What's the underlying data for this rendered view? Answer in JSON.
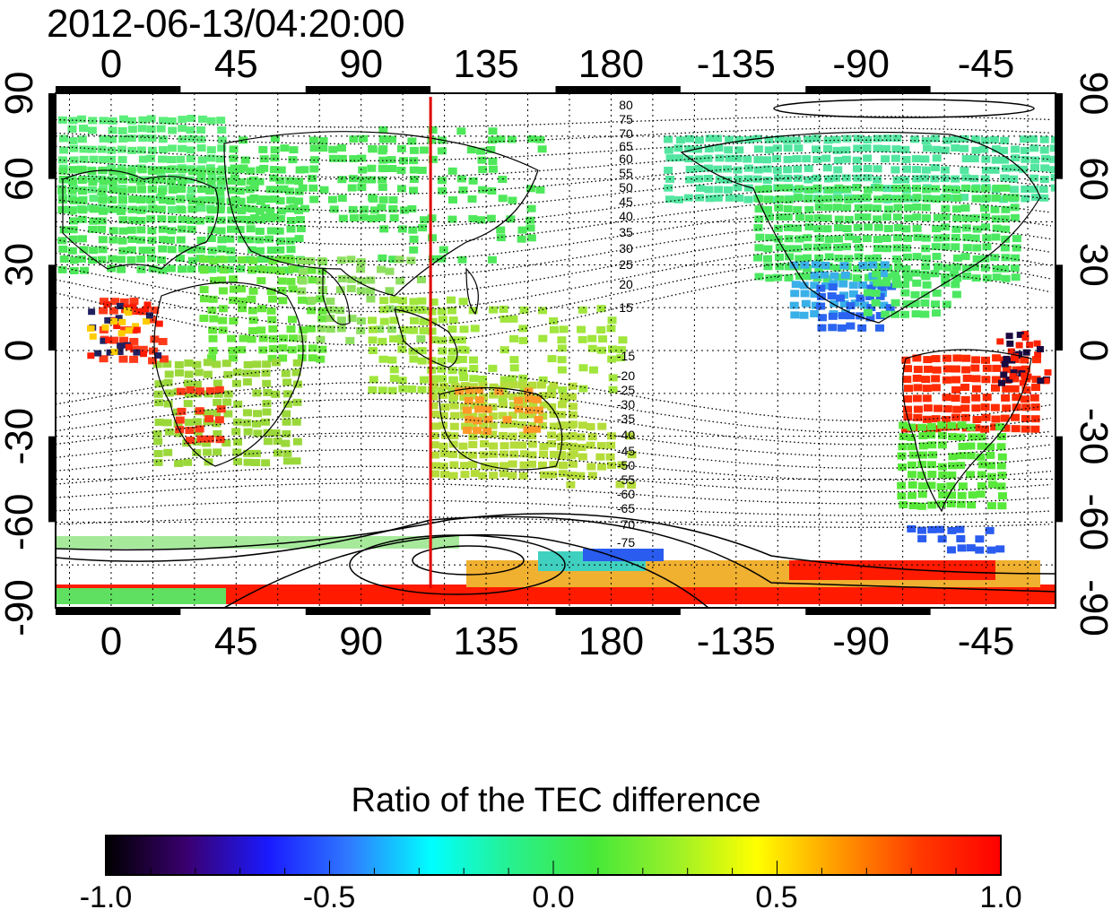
{
  "title": "2012-06-13/04:20:00",
  "map": {
    "lon_ticks_top": [
      "0",
      "45",
      "90",
      "135",
      "180",
      "-135",
      "-90",
      "-45"
    ],
    "lon_ticks_bottom": [
      "0",
      "45",
      "90",
      "135",
      "180",
      "-135",
      "-90",
      "-45"
    ],
    "lat_ticks_left": [
      "90",
      "60",
      "30",
      "0",
      "-30",
      "-60",
      "-90"
    ],
    "lat_ticks_right": [
      "90",
      "60",
      "30",
      "0",
      "-30",
      "-60",
      "-90"
    ],
    "terminator_longitude": 115,
    "contour_labels_north": [
      "80",
      "75",
      "70",
      "65",
      "60",
      "55",
      "50",
      "45",
      "40",
      "35",
      "30",
      "25",
      "20",
      "15"
    ],
    "contour_labels_south": [
      "-15",
      "-20",
      "-25",
      "-30",
      "-35",
      "-40",
      "-45",
      "-50",
      "-55",
      "-60",
      "-65",
      "-70",
      "-75"
    ]
  },
  "colorbar": {
    "title": "Ratio of the TEC difference",
    "ticks": [
      "-1.0",
      "-0.5",
      "0.0",
      "0.5",
      "1.0"
    ],
    "stops": [
      "#000000",
      "#3a0070",
      "#1a1aff",
      "#2f7bff",
      "#00ffff",
      "#28f08c",
      "#44e83a",
      "#9af028",
      "#ffff00",
      "#ff9a00",
      "#ff3a00",
      "#ff0000"
    ]
  },
  "regions": [
    {
      "name": "europe-asia",
      "color": "#4ee85a"
    },
    {
      "name": "russia",
      "color": "#5cee7a"
    },
    {
      "name": "africa-north",
      "color": "#66e83c"
    },
    {
      "name": "africa-west",
      "color": "#ff3a1a"
    },
    {
      "name": "africa-south",
      "color": "#9ad83a"
    },
    {
      "name": "indian-subcontinent",
      "color": "#8ee060"
    },
    {
      "name": "southeast-asia",
      "color": "#a0e63c"
    },
    {
      "name": "australia",
      "color": "#b4dc3a"
    },
    {
      "name": "australia-center",
      "color": "#ff9a2a"
    },
    {
      "name": "north-america",
      "color": "#4ce862"
    },
    {
      "name": "canada-arctic",
      "color": "#52e6a0"
    },
    {
      "name": "us-southwest",
      "color": "#3ab0e8"
    },
    {
      "name": "mexico",
      "color": "#2a64f0"
    },
    {
      "name": "south-america-north",
      "color": "#ff2a00"
    },
    {
      "name": "south-america-south",
      "color": "#58e83a"
    },
    {
      "name": "antarctic-band",
      "color": "#ff1a00"
    },
    {
      "name": "antarctic-east",
      "color": "#f0b030"
    },
    {
      "name": "antarctic-blue",
      "color": "#2a5cf0"
    }
  ]
}
